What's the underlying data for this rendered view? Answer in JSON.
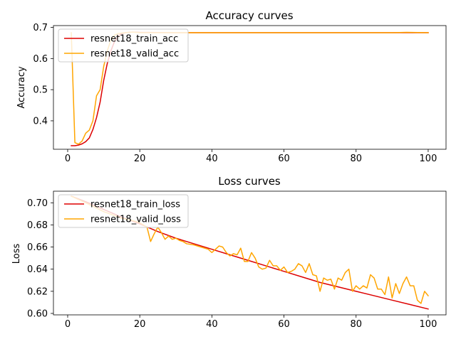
{
  "colors": {
    "train": "#dd0000",
    "valid": "#ffa500"
  },
  "chart_data": [
    {
      "type": "line",
      "title": "Accuracy curves",
      "xlabel": "",
      "ylabel": "Accuracy",
      "xlim": [
        -3.95,
        104.95
      ],
      "ylim": [
        0.3086,
        0.7058
      ],
      "xticks": [
        0,
        20,
        40,
        60,
        80,
        100
      ],
      "xtick_labels": [
        "0",
        "20",
        "40",
        "60",
        "80",
        "100"
      ],
      "yticks": [
        0.4,
        0.5,
        0.6,
        0.7
      ],
      "ytick_labels": [
        "0.4",
        "0.5",
        "0.6",
        "0.7"
      ],
      "grid": false,
      "legend_position": "upper-left",
      "series": [
        {
          "name": "resnet18_train_acc",
          "color": "#dd0000",
          "points": [
            [
              1,
              0.32
            ],
            [
              2,
              0.32
            ],
            [
              3,
              0.322
            ],
            [
              4,
              0.326
            ],
            [
              5,
              0.333
            ],
            [
              6,
              0.345
            ],
            [
              7,
              0.372
            ],
            [
              8,
              0.41
            ],
            [
              9,
              0.46
            ],
            [
              10,
              0.53
            ],
            [
              11,
              0.585
            ],
            [
              12,
              0.625
            ],
            [
              13,
              0.655
            ],
            [
              14,
              0.672
            ],
            [
              15,
              0.68
            ],
            [
              16,
              0.683
            ],
            [
              18,
              0.685
            ],
            [
              20,
              0.684
            ],
            [
              30,
              0.683
            ],
            [
              50,
              0.683
            ],
            [
              70,
              0.683
            ],
            [
              90,
              0.683
            ],
            [
              100,
              0.683
            ]
          ]
        },
        {
          "name": "resnet18_valid_acc",
          "color": "#ffa500",
          "points": [
            [
              1,
              0.683
            ],
            [
              2,
              0.33
            ],
            [
              3,
              0.325
            ],
            [
              4,
              0.335
            ],
            [
              5,
              0.36
            ],
            [
              6,
              0.37
            ],
            [
              7,
              0.4
            ],
            [
              8,
              0.48
            ],
            [
              9,
              0.5
            ],
            [
              10,
              0.575
            ],
            [
              11,
              0.625
            ],
            [
              12,
              0.66
            ],
            [
              13,
              0.675
            ],
            [
              14,
              0.68
            ],
            [
              15,
              0.682
            ],
            [
              16,
              0.683
            ],
            [
              18,
              0.685
            ],
            [
              20,
              0.683
            ],
            [
              30,
              0.683
            ],
            [
              50,
              0.683
            ],
            [
              70,
              0.683
            ],
            [
              90,
              0.683
            ],
            [
              94,
              0.684
            ],
            [
              100,
              0.683
            ]
          ]
        }
      ]
    },
    {
      "type": "line",
      "title": "Loss curves",
      "xlabel": "",
      "ylabel": "Loss",
      "xlim": [
        -3.95,
        104.95
      ],
      "ylim": [
        0.5987,
        0.7105
      ],
      "xticks": [
        0,
        20,
        40,
        60,
        80,
        100
      ],
      "xtick_labels": [
        "0",
        "20",
        "40",
        "60",
        "80",
        "100"
      ],
      "yticks": [
        0.6,
        0.62,
        0.64,
        0.66,
        0.68,
        0.7
      ],
      "ytick_labels": [
        "0.60",
        "0.62",
        "0.64",
        "0.66",
        "0.68",
        "0.70"
      ],
      "grid": false,
      "legend_position": "upper-left",
      "series": [
        {
          "name": "resnet18_train_loss",
          "color": "#dd0000",
          "points": [
            [
              1,
              0.706
            ],
            [
              5,
              0.701
            ],
            [
              10,
              0.694
            ],
            [
              15,
              0.687
            ],
            [
              20,
              0.681
            ],
            [
              25,
              0.674
            ],
            [
              30,
              0.668
            ],
            [
              35,
              0.663
            ],
            [
              40,
              0.658
            ],
            [
              45,
              0.653
            ],
            [
              50,
              0.648
            ],
            [
              55,
              0.643
            ],
            [
              60,
              0.638
            ],
            [
              65,
              0.633
            ],
            [
              70,
              0.628
            ],
            [
              75,
              0.624
            ],
            [
              80,
              0.62
            ],
            [
              85,
              0.616
            ],
            [
              90,
              0.612
            ],
            [
              95,
              0.608
            ],
            [
              100,
              0.604
            ]
          ]
        },
        {
          "name": "resnet18_valid_loss",
          "color": "#ffa500",
          "points": [
            [
              1,
              0.706
            ],
            [
              5,
              0.7
            ],
            [
              10,
              0.692
            ],
            [
              15,
              0.686
            ],
            [
              18,
              0.684
            ],
            [
              20,
              0.682
            ],
            [
              22,
              0.678
            ],
            [
              23,
              0.665
            ],
            [
              24,
              0.672
            ],
            [
              25,
              0.678
            ],
            [
              26,
              0.673
            ],
            [
              27,
              0.667
            ],
            [
              28,
              0.67
            ],
            [
              29,
              0.667
            ],
            [
              30,
              0.668
            ],
            [
              31,
              0.666
            ],
            [
              32,
              0.665
            ],
            [
              33,
              0.663
            ],
            [
              35,
              0.662
            ],
            [
              37,
              0.66
            ],
            [
              39,
              0.658
            ],
            [
              40,
              0.655
            ],
            [
              41,
              0.658
            ],
            [
              42,
              0.661
            ],
            [
              43,
              0.66
            ],
            [
              44,
              0.655
            ],
            [
              45,
              0.652
            ],
            [
              46,
              0.654
            ],
            [
              47,
              0.653
            ],
            [
              48,
              0.659
            ],
            [
              49,
              0.647
            ],
            [
              50,
              0.647
            ],
            [
              51,
              0.655
            ],
            [
              52,
              0.65
            ],
            [
              53,
              0.642
            ],
            [
              54,
              0.64
            ],
            [
              55,
              0.641
            ],
            [
              56,
              0.648
            ],
            [
              57,
              0.643
            ],
            [
              58,
              0.643
            ],
            [
              59,
              0.639
            ],
            [
              60,
              0.642
            ],
            [
              61,
              0.637
            ],
            [
              62,
              0.638
            ],
            [
              63,
              0.64
            ],
            [
              64,
              0.645
            ],
            [
              65,
              0.643
            ],
            [
              66,
              0.637
            ],
            [
              67,
              0.645
            ],
            [
              68,
              0.635
            ],
            [
              69,
              0.634
            ],
            [
              70,
              0.62
            ],
            [
              71,
              0.632
            ],
            [
              72,
              0.63
            ],
            [
              73,
              0.631
            ],
            [
              74,
              0.622
            ],
            [
              75,
              0.632
            ],
            [
              76,
              0.63
            ],
            [
              77,
              0.637
            ],
            [
              78,
              0.64
            ],
            [
              79,
              0.62
            ],
            [
              80,
              0.625
            ],
            [
              81,
              0.622
            ],
            [
              82,
              0.625
            ],
            [
              83,
              0.623
            ],
            [
              84,
              0.635
            ],
            [
              85,
              0.632
            ],
            [
              86,
              0.622
            ],
            [
              87,
              0.622
            ],
            [
              88,
              0.617
            ],
            [
              89,
              0.633
            ],
            [
              90,
              0.614
            ],
            [
              91,
              0.627
            ],
            [
              92,
              0.618
            ],
            [
              93,
              0.627
            ],
            [
              94,
              0.633
            ],
            [
              95,
              0.625
            ],
            [
              96,
              0.625
            ],
            [
              97,
              0.612
            ],
            [
              98,
              0.609
            ],
            [
              99,
              0.62
            ],
            [
              100,
              0.616
            ]
          ]
        }
      ]
    }
  ]
}
